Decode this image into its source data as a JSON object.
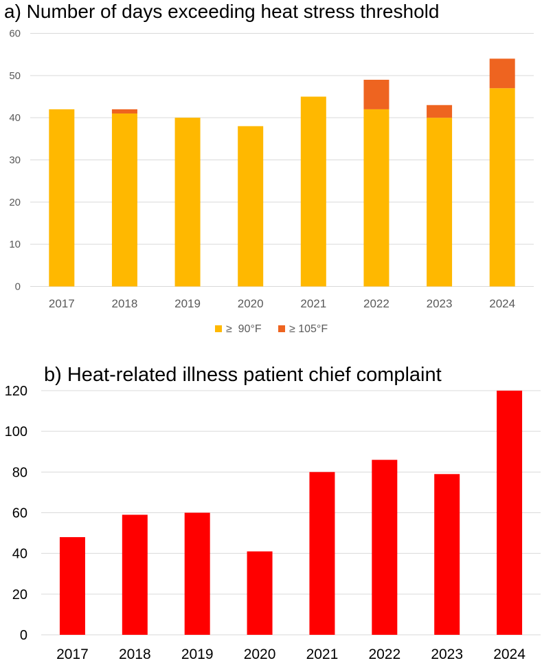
{
  "colors": {
    "ge90": "#FFB800",
    "ge105": "#EE6420",
    "illness": "#FF0000"
  },
  "chart_data": [
    {
      "type": "bar",
      "stacked": true,
      "title": "a) Number of days exceeding heat stress threshold",
      "categories": [
        "2017",
        "2018",
        "2019",
        "2020",
        "2021",
        "2022",
        "2023",
        "2024"
      ],
      "series": [
        {
          "name": "≥  90°F",
          "values": [
            42,
            41,
            40,
            38,
            45,
            42,
            40,
            47
          ]
        },
        {
          "name": "≥ 105°F",
          "values": [
            0,
            1,
            0,
            0,
            0,
            7,
            3,
            7
          ]
        }
      ],
      "yticks": [
        0,
        10,
        20,
        30,
        40,
        50,
        60
      ],
      "ylim": [
        0,
        60
      ],
      "grid": true,
      "legend": "bottom"
    },
    {
      "type": "bar",
      "title": "b) Heat-related illness patient chief complaint",
      "categories": [
        "2017",
        "2018",
        "2019",
        "2020",
        "2021",
        "2022",
        "2023",
        "2024"
      ],
      "series": [
        {
          "name": "Heat-related illness",
          "values": [
            48,
            59,
            60,
            41,
            80,
            86,
            79,
            120
          ]
        }
      ],
      "yticks": [
        0,
        20,
        40,
        60,
        80,
        100,
        120
      ],
      "ylim": [
        0,
        120
      ],
      "grid": true,
      "legend": "none"
    }
  ]
}
